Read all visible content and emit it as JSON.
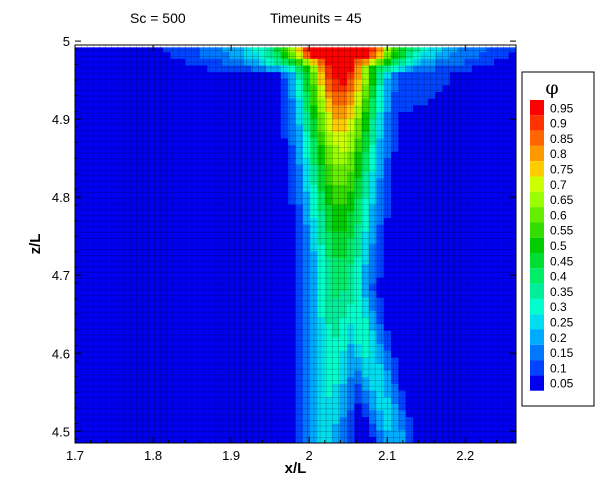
{
  "header": {
    "left": "Sc = 500",
    "right": "Timeunits = 45"
  },
  "chart_data": {
    "type": "heatmap",
    "title": "",
    "xlabel": "x/L",
    "ylabel": "z/L",
    "xlim": [
      1.7,
      2.265
    ],
    "ylim": [
      4.485,
      4.995
    ],
    "x_ticks": [
      "1.7",
      "1.8",
      "1.9",
      "2",
      "2.1",
      "2.2"
    ],
    "y_ticks": [
      "4.5",
      "4.6",
      "4.7",
      "4.8",
      "4.9",
      "5"
    ],
    "grid": "mesh lines on",
    "legend": {
      "title": "φ",
      "placement": "right",
      "levels": [
        "0.95",
        "0.9",
        "0.85",
        "0.8",
        "0.75",
        "0.7",
        "0.65",
        "0.6",
        "0.55",
        "0.5",
        "0.45",
        "0.4",
        "0.35",
        "0.3",
        "0.25",
        "0.2",
        "0.15",
        "0.1",
        "0.05"
      ],
      "colors": [
        "#ff0000",
        "#ff3300",
        "#ff6600",
        "#ff9900",
        "#ffcc00",
        "#ccff00",
        "#99ff00",
        "#66ee00",
        "#33dd00",
        "#00cc00",
        "#00dd33",
        "#00ee66",
        "#00ee99",
        "#00ffcc",
        "#00ddee",
        "#00aaff",
        "#0077ff",
        "#0044ff",
        "#0000ee"
      ]
    },
    "field_description_points": {
      "plume_center_x": 2.04,
      "top_spread_left_x": 1.93,
      "top_spread_right_x": 2.22,
      "lower_branch_left_x": 2.02,
      "lower_branch_right_x": 2.11,
      "top_peak_value": 0.98
    }
  }
}
